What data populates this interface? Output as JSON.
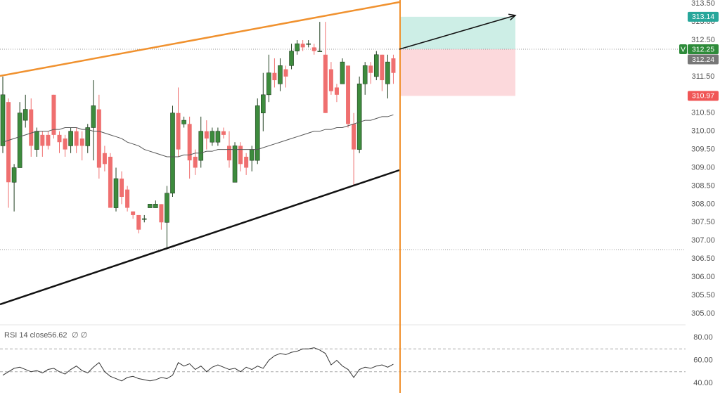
{
  "chart_data": {
    "type": "candlestick",
    "up_color": "#3d8b3d",
    "down_color": "#ef6f6f",
    "ma_color": "#555555",
    "open": [
      309.6,
      310.8,
      308.6,
      309.0,
      310.3,
      310.6,
      309.5,
      309.9,
      309.9,
      311.0,
      309.9,
      309.8,
      309.6,
      310.0,
      309.8,
      309.6,
      310.1,
      310.6,
      309.4,
      309.3,
      307.9,
      308.7,
      308.4,
      307.8,
      307.7,
      307.6,
      307.9,
      307.9,
      308.0,
      307.5,
      308.3,
      310.5,
      310.2,
      310.2,
      309.3,
      309.2,
      310.0,
      309.7,
      309.7,
      310.0,
      309.6,
      308.6,
      309.6,
      309.3,
      309.2,
      309.2,
      310.5,
      311.0,
      311.6,
      311.3,
      311.7,
      311.8,
      312.2,
      312.4,
      312.4,
      312.3,
      312.2,
      312.1,
      311.7,
      311.2,
      311.3,
      311.8,
      310.2,
      309.5,
      311.3,
      311.8,
      311.5,
      312.1,
      311.3,
      312.0
    ],
    "high": [
      311.5,
      310.9,
      309.1,
      310.8,
      311.0,
      310.9,
      310.1,
      310.0,
      310.0,
      311.0,
      310.0,
      309.9,
      310.1,
      310.1,
      310.0,
      310.2,
      311.4,
      311.0,
      309.6,
      309.4,
      309.0,
      308.9,
      308.5,
      307.8,
      307.7,
      307.7,
      308.0,
      308.1,
      308.0,
      308.5,
      310.7,
      311.2,
      310.4,
      310.4,
      309.5,
      310.4,
      310.3,
      310.1,
      310.1,
      310.1,
      310.0,
      309.7,
      309.7,
      309.4,
      309.6,
      310.9,
      311.6,
      312.1,
      312.0,
      312.0,
      311.8,
      312.4,
      312.5,
      312.5,
      312.5,
      312.4,
      313.0,
      313.0,
      311.9,
      311.3,
      312.0,
      311.8,
      310.5,
      311.5,
      311.9,
      311.9,
      312.2,
      312.1,
      312.1,
      312.1
    ],
    "low": [
      309.4,
      307.9,
      307.8,
      309.0,
      310.1,
      309.3,
      309.3,
      309.3,
      309.5,
      309.8,
      309.4,
      309.3,
      309.4,
      309.4,
      309.2,
      309.4,
      309.2,
      308.7,
      308.9,
      307.9,
      307.8,
      308.0,
      307.8,
      307.6,
      307.2,
      307.5,
      307.9,
      307.9,
      307.3,
      306.8,
      308.2,
      309.3,
      310.1,
      308.7,
      308.8,
      309.0,
      309.5,
      309.6,
      309.6,
      309.8,
      309.0,
      308.6,
      308.9,
      308.8,
      308.9,
      309.1,
      310.0,
      310.8,
      311.2,
      311.1,
      311.2,
      311.7,
      312.1,
      312.2,
      312.3,
      312.1,
      312.2,
      310.5,
      311.0,
      310.8,
      311.3,
      310.1,
      308.5,
      309.4,
      311.0,
      311.3,
      311.4,
      311.1,
      310.9,
      311.3
    ],
    "close": [
      311.0,
      308.6,
      309.0,
      310.5,
      310.6,
      309.6,
      310.0,
      309.6,
      309.6,
      309.9,
      309.7,
      309.5,
      310.0,
      309.6,
      309.6,
      310.1,
      310.7,
      309.0,
      309.1,
      307.9,
      308.7,
      308.2,
      307.9,
      307.7,
      307.3,
      307.6,
      308.0,
      308.0,
      307.5,
      308.3,
      310.5,
      309.5,
      310.3,
      309.2,
      309.0,
      310.0,
      309.8,
      310.0,
      310.0,
      309.9,
      309.2,
      309.6,
      309.1,
      309.0,
      309.5,
      310.7,
      311.0,
      311.6,
      311.4,
      311.8,
      311.5,
      312.2,
      312.4,
      312.3,
      312.4,
      312.2,
      312.2,
      310.5,
      311.1,
      311.0,
      311.9,
      310.2,
      309.5,
      311.3,
      311.8,
      311.6,
      312.1,
      311.4,
      311.9,
      311.6
    ],
    "ma": [
      309.7,
      309.75,
      309.8,
      309.85,
      309.9,
      309.95,
      310.0,
      310.0,
      310.0,
      310.05,
      310.05,
      310.1,
      310.1,
      310.1,
      310.05,
      310.05,
      310.0,
      310.0,
      309.95,
      309.9,
      309.85,
      309.8,
      309.7,
      309.65,
      309.6,
      309.5,
      309.45,
      309.4,
      309.35,
      309.3,
      309.3,
      309.3,
      309.35,
      309.35,
      309.4,
      309.4,
      309.45,
      309.45,
      309.5,
      309.5,
      309.5,
      309.5,
      309.5,
      309.5,
      309.5,
      309.5,
      309.55,
      309.6,
      309.65,
      309.7,
      309.75,
      309.8,
      309.85,
      309.9,
      309.95,
      310.0,
      310.0,
      310.05,
      310.05,
      310.1,
      310.1,
      310.15,
      310.2,
      310.25,
      310.3,
      310.3,
      310.35,
      310.4,
      310.4,
      310.45
    ],
    "ylim": [
      304.69,
      313.6
    ],
    "yticks": [
      {
        "value": 305,
        "label": "305.00"
      },
      {
        "value": 305.5,
        "label": "305.50"
      },
      {
        "value": 306,
        "label": "306.00"
      },
      {
        "value": 306.5,
        "label": "306.50"
      },
      {
        "value": 307,
        "label": "307.00"
      },
      {
        "value": 307.5,
        "label": "307.50"
      },
      {
        "value": 308,
        "label": "308.00"
      },
      {
        "value": 308.5,
        "label": "308.50"
      },
      {
        "value": 309,
        "label": "309.00"
      },
      {
        "value": 309.5,
        "label": "309.50"
      },
      {
        "value": 310,
        "label": "310.00"
      },
      {
        "value": 310.5,
        "label": "310.50"
      },
      {
        "value": 311,
        "label": "311.00"
      },
      {
        "value": 311.5,
        "label": "311.50"
      },
      {
        "value": 312,
        "label": "312.00"
      },
      {
        "value": 312.5,
        "label": "312.50"
      },
      {
        "value": 313,
        "label": "313.00"
      },
      {
        "value": 313.5,
        "label": "313.50"
      }
    ],
    "price_labels": [
      {
        "value": 313.14,
        "color": "#26a69a"
      },
      {
        "value": 312.25,
        "color": "#2e8b3a"
      },
      {
        "value": 312.24,
        "color": "#777777"
      },
      {
        "value": 310.97,
        "color": "#f05656"
      }
    ],
    "entry_flag": "V",
    "rsi": {
      "title": "RSI 14 close",
      "value": 56.62,
      "extra": "∅ ∅",
      "color": "#333333",
      "values": [
        47,
        50,
        53,
        54,
        52,
        50,
        51,
        49,
        52,
        53,
        50,
        48,
        52,
        55,
        51,
        49,
        54,
        58,
        50,
        46,
        44,
        42,
        45,
        46,
        44,
        43,
        42,
        43,
        45,
        44,
        47,
        58,
        55,
        57,
        52,
        55,
        50,
        54,
        56,
        54,
        52,
        53,
        50,
        54,
        52,
        55,
        53,
        60,
        64,
        66,
        65,
        67,
        68,
        70,
        70,
        71,
        69,
        66,
        56,
        60,
        55,
        52,
        45,
        52,
        54,
        53,
        55,
        56,
        54,
        56.6
      ],
      "ylim": [
        31.4,
        91.1
      ],
      "yticks": [
        {
          "value": 80,
          "label": "80.00"
        },
        {
          "value": 60,
          "label": "60.00"
        },
        {
          "value": 40,
          "label": "40.00"
        }
      ],
      "bands": [
        70,
        50
      ]
    }
  }
}
